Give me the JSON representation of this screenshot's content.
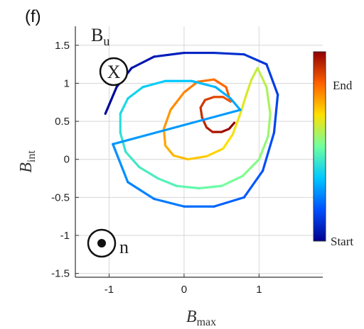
{
  "chart_data": {
    "type": "line",
    "panel_label": "(f)",
    "xlabel": {
      "main": "B",
      "sub": "max"
    },
    "ylabel": {
      "main": "B",
      "sub": "int"
    },
    "xlim": [
      -1.45,
      1.85
    ],
    "ylim": [
      -1.55,
      1.75
    ],
    "xticks": [
      -1,
      0,
      1
    ],
    "xtick_labels": [
      "-1",
      "0",
      "1"
    ],
    "yticks": [
      -1.5,
      -1,
      -0.5,
      0,
      0.5,
      1,
      1.5
    ],
    "ytick_labels": [
      "-1.5",
      "-1",
      "-0.5",
      "0",
      "0.5",
      "1",
      "1.5"
    ],
    "grid": true,
    "annotations": {
      "bu_main": "B",
      "bu_sub": "u",
      "bu_symbol": "X",
      "n_label": "n"
    },
    "colorbar": {
      "colors": [
        "#00008f",
        "#0050ff",
        "#00c8ff",
        "#70ffa0",
        "#ffe000",
        "#ff6000",
        "#900000"
      ],
      "start_label": "Start",
      "end_label": "End"
    },
    "curve": [
      [
        0.67,
        0.48
      ],
      [
        0.6,
        0.4
      ],
      [
        0.5,
        0.36
      ],
      [
        0.38,
        0.36
      ],
      [
        0.3,
        0.42
      ],
      [
        0.24,
        0.55
      ],
      [
        0.22,
        0.68
      ],
      [
        0.28,
        0.78
      ],
      [
        0.4,
        0.82
      ],
      [
        0.52,
        0.82
      ],
      [
        0.62,
        0.76
      ],
      [
        0.56,
        0.95
      ],
      [
        0.4,
        1.05
      ],
      [
        0.18,
        1.02
      ],
      [
        0.0,
        0.88
      ],
      [
        -0.18,
        0.65
      ],
      [
        -0.27,
        0.4
      ],
      [
        -0.25,
        0.18
      ],
      [
        -0.14,
        0.05
      ],
      [
        0.05,
        0.0
      ],
      [
        0.3,
        0.04
      ],
      [
        0.52,
        0.14
      ],
      [
        0.65,
        0.33
      ],
      [
        0.75,
        0.6
      ],
      [
        0.83,
        0.85
      ],
      [
        0.9,
        1.05
      ],
      [
        0.98,
        1.2
      ],
      [
        1.1,
        0.95
      ],
      [
        1.15,
        0.6
      ],
      [
        1.12,
        0.3
      ],
      [
        1.0,
        0.0
      ],
      [
        0.78,
        -0.22
      ],
      [
        0.5,
        -0.35
      ],
      [
        0.2,
        -0.38
      ],
      [
        -0.1,
        -0.35
      ],
      [
        -0.35,
        -0.25
      ],
      [
        -0.6,
        -0.1
      ],
      [
        -0.78,
        0.1
      ],
      [
        -0.85,
        0.35
      ],
      [
        -0.85,
        0.6
      ],
      [
        -0.75,
        0.8
      ],
      [
        -0.55,
        0.95
      ],
      [
        -0.25,
        1.03
      ],
      [
        0.1,
        1.03
      ],
      [
        0.42,
        0.95
      ],
      [
        0.62,
        0.8
      ],
      [
        0.75,
        0.65
      ],
      [
        -0.95,
        0.2
      ],
      [
        -0.75,
        -0.3
      ],
      [
        -0.4,
        -0.52
      ],
      [
        0.0,
        -0.62
      ],
      [
        0.4,
        -0.62
      ],
      [
        0.8,
        -0.5
      ],
      [
        1.05,
        -0.15
      ],
      [
        1.2,
        0.35
      ],
      [
        1.25,
        0.85
      ],
      [
        1.1,
        1.25
      ],
      [
        0.8,
        1.38
      ],
      [
        0.4,
        1.4
      ],
      [
        0.0,
        1.4
      ],
      [
        -0.4,
        1.35
      ],
      [
        -0.7,
        1.2
      ],
      [
        -0.9,
        0.95
      ],
      [
        -1.05,
        0.6
      ]
    ]
  }
}
